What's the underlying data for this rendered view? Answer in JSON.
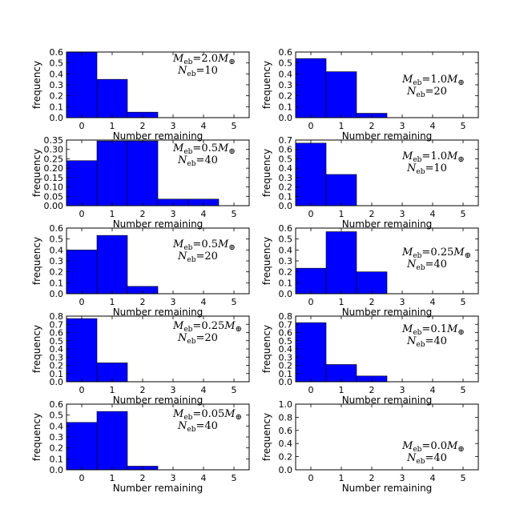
{
  "chart_data": [
    {
      "type": "bar",
      "categories": [
        0,
        1,
        2,
        3,
        4,
        5
      ],
      "values": [
        0.6,
        0.35,
        0.05,
        0,
        0,
        0
      ],
      "ylim": [
        0,
        0.6
      ],
      "yticks": [
        "0.0",
        "0.1",
        "0.2",
        "0.3",
        "0.4",
        "0.5",
        "0.6"
      ],
      "xlim": [
        -0.5,
        5.5
      ],
      "xticks": [
        "0",
        "1",
        "2",
        "3",
        "4",
        "5"
      ],
      "xlabel": "Number remaining",
      "ylabel": "frequency",
      "m_value": "2.0",
      "n_value": "10",
      "bar_color": "#0000ff"
    },
    {
      "type": "bar",
      "categories": [
        0,
        1,
        2,
        3,
        4,
        5
      ],
      "values": [
        0.54,
        0.42,
        0.04,
        0,
        0,
        0
      ],
      "ylim": [
        0,
        0.6
      ],
      "yticks": [
        "0.0",
        "0.1",
        "0.2",
        "0.3",
        "0.4",
        "0.5",
        "0.6"
      ],
      "xlim": [
        -0.5,
        5.5
      ],
      "xticks": [
        "0",
        "1",
        "2",
        "3",
        "4",
        "5"
      ],
      "xlabel": "Number remaining",
      "ylabel": "frequency",
      "m_value": "1.0",
      "n_value": "20",
      "bar_color": "#0000ff"
    },
    {
      "type": "bar",
      "categories": [
        0,
        1,
        2,
        3,
        4,
        5
      ],
      "values": [
        0.24,
        0.345,
        0.345,
        0.035,
        0.035,
        0
      ],
      "ylim": [
        0,
        0.35
      ],
      "yticks": [
        "0.00",
        "0.05",
        "0.10",
        "0.15",
        "0.20",
        "0.25",
        "0.30",
        "0.35"
      ],
      "xlim": [
        -0.5,
        5.5
      ],
      "xticks": [
        "0",
        "1",
        "2",
        "3",
        "4",
        "5"
      ],
      "xlabel": "Number remaining",
      "ylabel": "frequency",
      "m_value": "0.5",
      "n_value": "40",
      "bar_color": "#0000ff"
    },
    {
      "type": "bar",
      "categories": [
        0,
        1,
        2,
        3,
        4,
        5
      ],
      "values": [
        0.667,
        0.333,
        0,
        0,
        0,
        0
      ],
      "ylim": [
        0,
        0.7
      ],
      "yticks": [
        "0.0",
        "0.1",
        "0.2",
        "0.3",
        "0.4",
        "0.5",
        "0.6",
        "0.7"
      ],
      "xlim": [
        -0.5,
        5.5
      ],
      "xticks": [
        "0",
        "1",
        "2",
        "3",
        "4",
        "5"
      ],
      "xlabel": "Number remaining",
      "ylabel": "frequency",
      "m_value": "1.0",
      "n_value": "10",
      "bar_color": "#0000ff"
    },
    {
      "type": "bar",
      "categories": [
        0,
        1,
        2,
        3,
        4,
        5
      ],
      "values": [
        0.4,
        0.533,
        0.067,
        0,
        0,
        0
      ],
      "ylim": [
        0,
        0.6
      ],
      "yticks": [
        "0.0",
        "0.1",
        "0.2",
        "0.3",
        "0.4",
        "0.5",
        "0.6"
      ],
      "xlim": [
        -0.5,
        5.5
      ],
      "xticks": [
        "0",
        "1",
        "2",
        "3",
        "4",
        "5"
      ],
      "xlabel": "Number remaining",
      "ylabel": "frequency",
      "m_value": "0.5",
      "n_value": "20",
      "bar_color": "#0000ff"
    },
    {
      "type": "bar",
      "categories": [
        0,
        1,
        2,
        3,
        4,
        5
      ],
      "values": [
        0.233,
        0.567,
        0.2,
        0,
        0,
        0
      ],
      "ylim": [
        0,
        0.6
      ],
      "yticks": [
        "0.0",
        "0.1",
        "0.2",
        "0.3",
        "0.4",
        "0.5",
        "0.6"
      ],
      "xlim": [
        -0.5,
        5.5
      ],
      "xticks": [
        "0",
        "1",
        "2",
        "3",
        "4",
        "5"
      ],
      "xlabel": "Number remaining",
      "ylabel": "frequency",
      "m_value": "0.25",
      "n_value": "40",
      "bar_color": "#0000ff"
    },
    {
      "type": "bar",
      "categories": [
        0,
        1,
        2,
        3,
        4,
        5
      ],
      "values": [
        0.77,
        0.23,
        0,
        0,
        0,
        0
      ],
      "ylim": [
        0,
        0.8
      ],
      "yticks": [
        "0.0",
        "0.1",
        "0.2",
        "0.3",
        "0.4",
        "0.5",
        "0.6",
        "0.7",
        "0.8"
      ],
      "xlim": [
        -0.5,
        5.5
      ],
      "xticks": [
        "0",
        "1",
        "2",
        "3",
        "4",
        "5"
      ],
      "xlabel": "Number remaining",
      "ylabel": "frequency",
      "m_value": "0.25",
      "n_value": "20",
      "bar_color": "#0000ff"
    },
    {
      "type": "bar",
      "categories": [
        0,
        1,
        2,
        3,
        4,
        5
      ],
      "values": [
        0.72,
        0.21,
        0.07,
        0,
        0,
        0
      ],
      "ylim": [
        0,
        0.8
      ],
      "yticks": [
        "0.0",
        "0.1",
        "0.2",
        "0.3",
        "0.4",
        "0.5",
        "0.6",
        "0.7",
        "0.8"
      ],
      "xlim": [
        -0.5,
        5.5
      ],
      "xticks": [
        "0",
        "1",
        "2",
        "3",
        "4",
        "5"
      ],
      "xlabel": "Number remaining",
      "ylabel": "frequency",
      "m_value": "0.1",
      "n_value": "40",
      "bar_color": "#0000ff"
    },
    {
      "type": "bar",
      "categories": [
        0,
        1,
        2,
        3,
        4,
        5
      ],
      "values": [
        0.433,
        0.533,
        0.033,
        0,
        0,
        0
      ],
      "ylim": [
        0,
        0.6
      ],
      "yticks": [
        "0.0",
        "0.1",
        "0.2",
        "0.3",
        "0.4",
        "0.5",
        "0.6"
      ],
      "xlim": [
        -0.5,
        5.5
      ],
      "xticks": [
        "0",
        "1",
        "2",
        "3",
        "4",
        "5"
      ],
      "xlabel": "Number remaining",
      "ylabel": "frequency",
      "m_value": "0.05",
      "n_value": "40",
      "bar_color": "#0000ff"
    },
    {
      "type": "bar",
      "categories": [
        0,
        1,
        2,
        3,
        4,
        5
      ],
      "values": [
        0,
        0,
        0,
        0,
        0,
        0
      ],
      "ylim": [
        0,
        1.0
      ],
      "yticks": [
        "0.0",
        "0.2",
        "0.4",
        "0.6",
        "0.8",
        "1.0"
      ],
      "xlim": [
        -0.5,
        5.5
      ],
      "xticks": [
        "0",
        "1",
        "2",
        "3",
        "4",
        "5"
      ],
      "xlabel": "Number remaining",
      "ylabel": "frequency",
      "m_value": "0.0",
      "n_value": "40",
      "bar_color": "#0000ff"
    }
  ]
}
